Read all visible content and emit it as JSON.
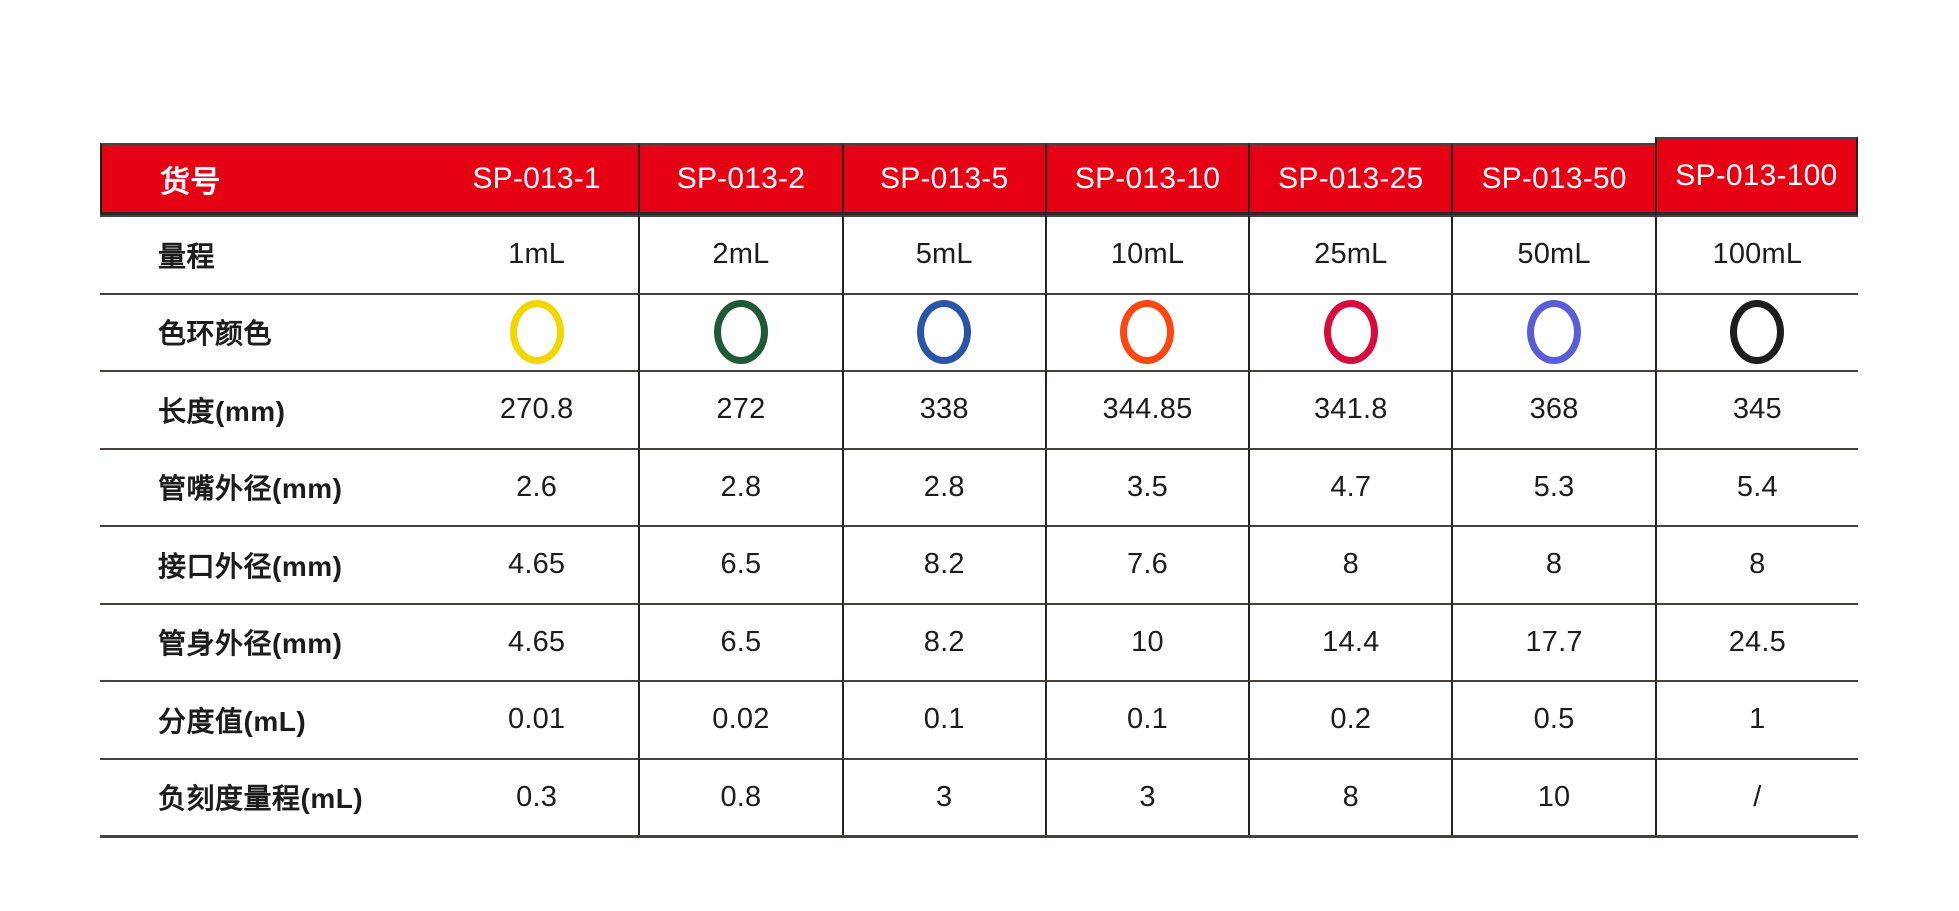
{
  "theme": {
    "red": "#E60014",
    "header_text": "#FFFFFF",
    "text": "#1C1C1C",
    "hline": "#474240",
    "vline": "#232323",
    "bg": "#FFFFFF"
  },
  "table": {
    "header": {
      "label": "货号",
      "columns": [
        "SP-013-1",
        "SP-013-2",
        "SP-013-5",
        "SP-013-10",
        "SP-013-25",
        "SP-013-50",
        "SP-013-100"
      ]
    },
    "rows": [
      {
        "label": "量程",
        "type": "text",
        "values": [
          "1mL",
          "2mL",
          "5mL",
          "10mL",
          "25mL",
          "50mL",
          "100mL"
        ]
      },
      {
        "label": "色环颜色",
        "type": "color-ring",
        "ring_names": [
          "yellow",
          "dark-green",
          "blue",
          "orange",
          "crimson",
          "blue-violet",
          "black"
        ],
        "colors": [
          "#F2D600",
          "#1E5A36",
          "#2A55A6",
          "#FB4712",
          "#D50C3C",
          "#5A5DD8",
          "#1D1D1D"
        ]
      },
      {
        "label": "长度(mm)",
        "type": "text",
        "values": [
          "270.8",
          "272",
          "338",
          "344.85",
          "341.8",
          "368",
          "345"
        ]
      },
      {
        "label": "管嘴外径(mm)",
        "type": "text",
        "values": [
          "2.6",
          "2.8",
          "2.8",
          "3.5",
          "4.7",
          "5.3",
          "5.4"
        ]
      },
      {
        "label": "接口外径(mm)",
        "type": "text",
        "values": [
          "4.65",
          "6.5",
          "8.2",
          "7.6",
          "8",
          "8",
          "8"
        ]
      },
      {
        "label": "管身外径(mm)",
        "type": "text",
        "values": [
          "4.65",
          "6.5",
          "8.2",
          "10",
          "14.4",
          "17.7",
          "24.5"
        ]
      },
      {
        "label": "分度值(mL)",
        "type": "text",
        "values": [
          "0.01",
          "0.02",
          "0.1",
          "0.1",
          "0.2",
          "0.5",
          "1"
        ]
      },
      {
        "label": "负刻度量程(mL)",
        "type": "text",
        "values": [
          "0.3",
          "0.8",
          "3",
          "3",
          "8",
          "10",
          "/"
        ]
      }
    ]
  }
}
